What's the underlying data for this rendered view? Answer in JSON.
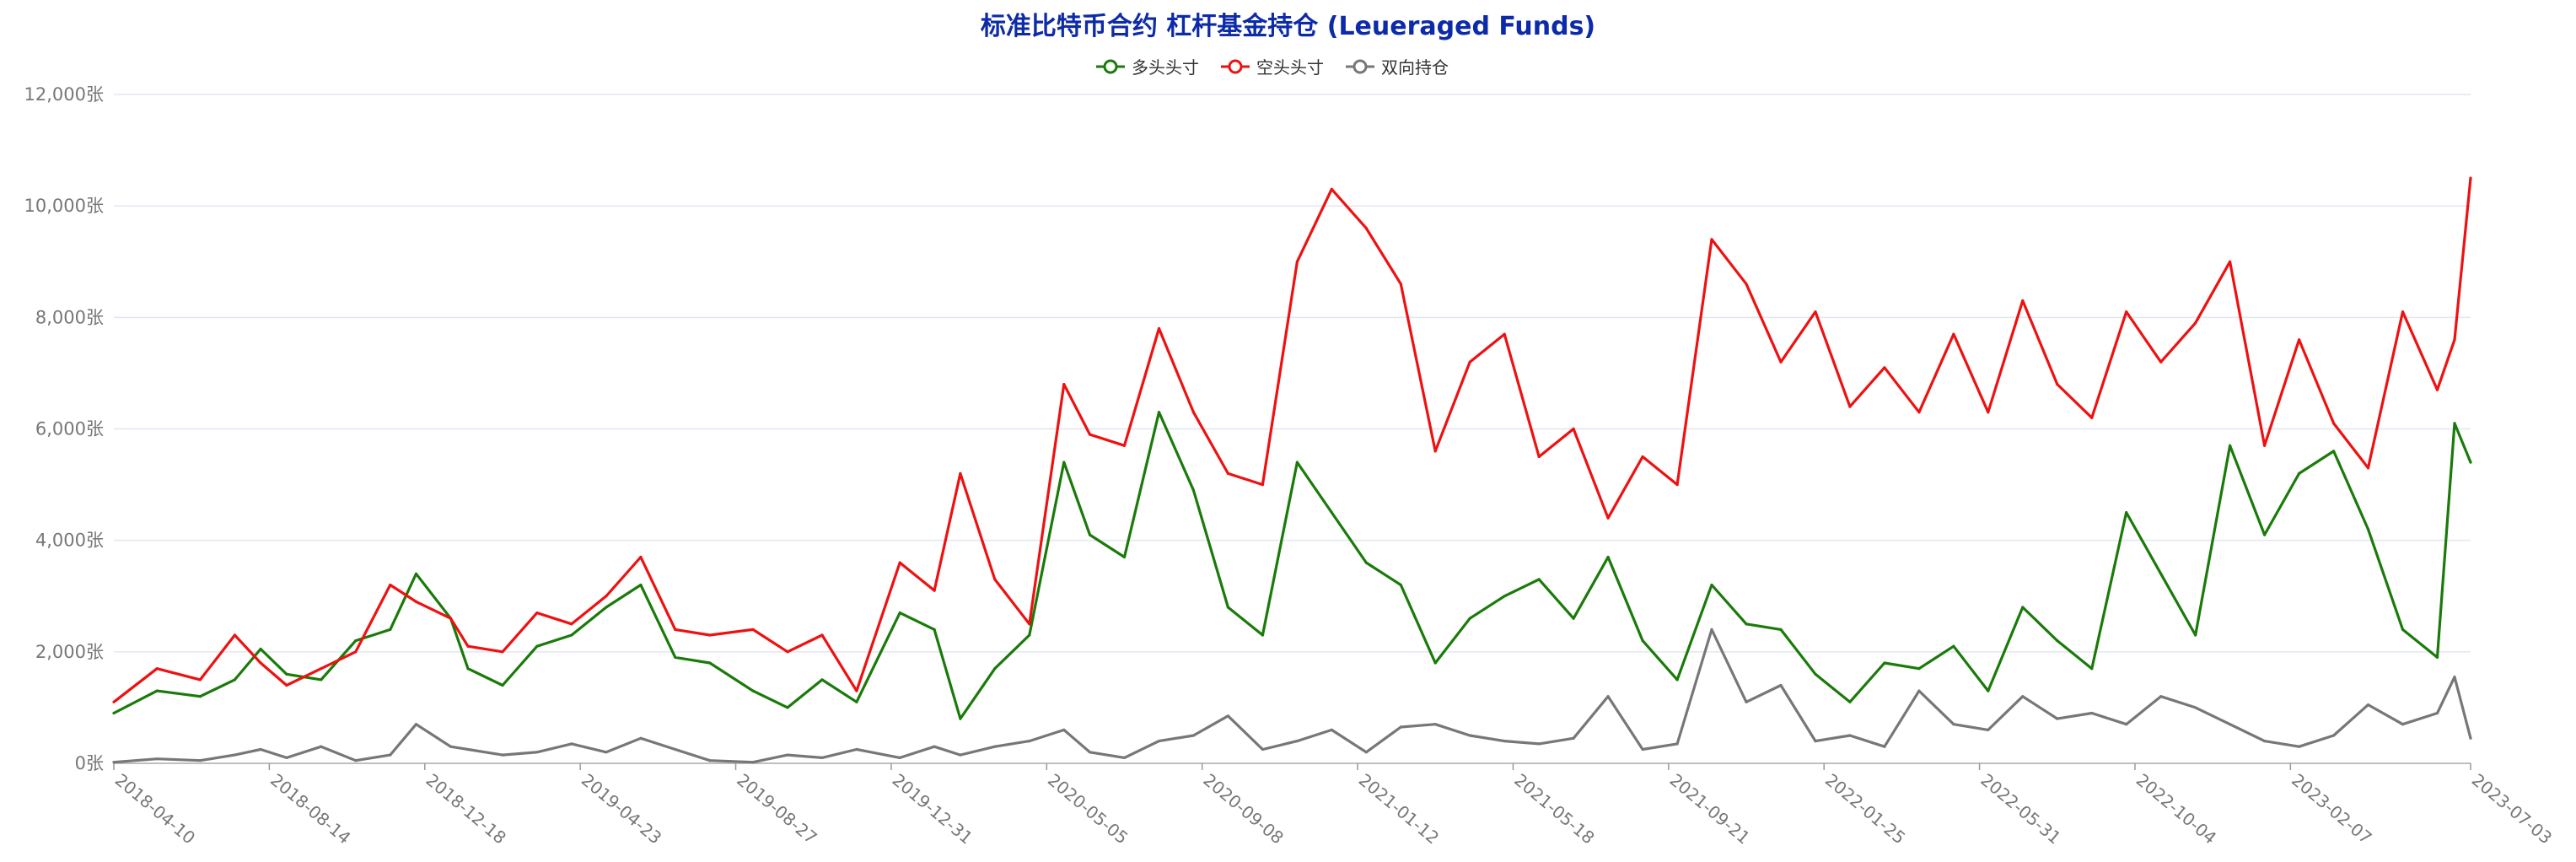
{
  "chart_data": {
    "type": "line",
    "title": "标准比特币合约 杠杆基金持仓 (Leueraged Funds)",
    "ylim": [
      0,
      12000
    ],
    "y_ticks": [
      "0张",
      "2,000张",
      "4,000张",
      "6,000张",
      "8,000张",
      "10,000张",
      "12,000张"
    ],
    "y_tick_values": [
      0,
      2000,
      4000,
      6000,
      8000,
      10000,
      12000
    ],
    "x_ticks": [
      "2018-04-10",
      "2018-08-14",
      "2018-12-18",
      "2019-04-23",
      "2019-08-27",
      "2019-12-31",
      "2020-05-05",
      "2020-09-08",
      "2021-01-12",
      "2021-05-18",
      "2021-09-21",
      "2022-01-25",
      "2022-05-31",
      "2022-10-04",
      "2023-02-07",
      "2023-07-03"
    ],
    "grid": true,
    "legend_position": "top-center",
    "series": [
      {
        "name": "多头头寸",
        "color": "#1a7a0a",
        "points": [
          [
            "2018-04-10",
            900
          ],
          [
            "2018-05-15",
            1300
          ],
          [
            "2018-06-19",
            1200
          ],
          [
            "2018-07-17",
            1500
          ],
          [
            "2018-08-07",
            2050
          ],
          [
            "2018-08-28",
            1600
          ],
          [
            "2018-09-25",
            1500
          ],
          [
            "2018-10-23",
            2200
          ],
          [
            "2018-11-20",
            2400
          ],
          [
            "2018-12-11",
            3400
          ],
          [
            "2019-01-08",
            2600
          ],
          [
            "2019-01-22",
            1700
          ],
          [
            "2019-02-19",
            1400
          ],
          [
            "2019-03-19",
            2100
          ],
          [
            "2019-04-16",
            2300
          ],
          [
            "2019-05-14",
            2800
          ],
          [
            "2019-06-11",
            3200
          ],
          [
            "2019-07-09",
            1900
          ],
          [
            "2019-08-06",
            1800
          ],
          [
            "2019-09-10",
            1300
          ],
          [
            "2019-10-08",
            1000
          ],
          [
            "2019-11-05",
            1500
          ],
          [
            "2019-12-03",
            1100
          ],
          [
            "2020-01-07",
            2700
          ],
          [
            "2020-02-04",
            2400
          ],
          [
            "2020-02-25",
            800
          ],
          [
            "2020-03-24",
            1700
          ],
          [
            "2020-04-21",
            2300
          ],
          [
            "2020-05-19",
            5400
          ],
          [
            "2020-06-09",
            4100
          ],
          [
            "2020-07-07",
            3700
          ],
          [
            "2020-08-04",
            6300
          ],
          [
            "2020-09-01",
            4900
          ],
          [
            "2020-09-29",
            2800
          ],
          [
            "2020-10-27",
            2300
          ],
          [
            "2020-11-24",
            5400
          ],
          [
            "2020-12-22",
            4500
          ],
          [
            "2021-01-19",
            3600
          ],
          [
            "2021-02-16",
            3200
          ],
          [
            "2021-03-16",
            1800
          ],
          [
            "2021-04-13",
            2600
          ],
          [
            "2021-05-11",
            3000
          ],
          [
            "2021-06-08",
            3300
          ],
          [
            "2021-07-06",
            2600
          ],
          [
            "2021-08-03",
            3700
          ],
          [
            "2021-08-31",
            2200
          ],
          [
            "2021-09-28",
            1500
          ],
          [
            "2021-10-26",
            3200
          ],
          [
            "2021-11-23",
            2500
          ],
          [
            "2021-12-21",
            2400
          ],
          [
            "2022-01-18",
            1600
          ],
          [
            "2022-02-15",
            1100
          ],
          [
            "2022-03-15",
            1800
          ],
          [
            "2022-04-12",
            1700
          ],
          [
            "2022-05-10",
            2100
          ],
          [
            "2022-06-07",
            1300
          ],
          [
            "2022-07-05",
            2800
          ],
          [
            "2022-08-02",
            2200
          ],
          [
            "2022-08-30",
            1700
          ],
          [
            "2022-09-27",
            4500
          ],
          [
            "2022-10-25",
            3400
          ],
          [
            "2022-11-22",
            2300
          ],
          [
            "2022-12-20",
            5700
          ],
          [
            "2023-01-17",
            4100
          ],
          [
            "2023-02-14",
            5200
          ],
          [
            "2023-03-14",
            5600
          ],
          [
            "2023-04-11",
            4200
          ],
          [
            "2023-05-09",
            2400
          ],
          [
            "2023-06-06",
            1900
          ],
          [
            "2023-06-20",
            6100
          ],
          [
            "2023-07-03",
            5400
          ]
        ]
      },
      {
        "name": "空头头寸",
        "color": "#ee1111",
        "points": [
          [
            "2018-04-10",
            1100
          ],
          [
            "2018-05-15",
            1700
          ],
          [
            "2018-06-19",
            1500
          ],
          [
            "2018-07-17",
            2300
          ],
          [
            "2018-08-07",
            1800
          ],
          [
            "2018-08-28",
            1400
          ],
          [
            "2018-09-25",
            1700
          ],
          [
            "2018-10-23",
            2000
          ],
          [
            "2018-11-20",
            3200
          ],
          [
            "2018-12-11",
            2900
          ],
          [
            "2019-01-08",
            2600
          ],
          [
            "2019-01-22",
            2100
          ],
          [
            "2019-02-19",
            2000
          ],
          [
            "2019-03-19",
            2700
          ],
          [
            "2019-04-16",
            2500
          ],
          [
            "2019-05-14",
            3000
          ],
          [
            "2019-06-11",
            3700
          ],
          [
            "2019-07-09",
            2400
          ],
          [
            "2019-08-06",
            2300
          ],
          [
            "2019-09-10",
            2400
          ],
          [
            "2019-10-08",
            2000
          ],
          [
            "2019-11-05",
            2300
          ],
          [
            "2019-12-03",
            1300
          ],
          [
            "2020-01-07",
            3600
          ],
          [
            "2020-02-04",
            3100
          ],
          [
            "2020-02-25",
            5200
          ],
          [
            "2020-03-24",
            3300
          ],
          [
            "2020-04-21",
            2500
          ],
          [
            "2020-05-19",
            6800
          ],
          [
            "2020-06-09",
            5900
          ],
          [
            "2020-07-07",
            5700
          ],
          [
            "2020-08-04",
            7800
          ],
          [
            "2020-09-01",
            6300
          ],
          [
            "2020-09-29",
            5200
          ],
          [
            "2020-10-27",
            5000
          ],
          [
            "2020-11-24",
            9000
          ],
          [
            "2020-12-22",
            10300
          ],
          [
            "2021-01-19",
            9600
          ],
          [
            "2021-02-16",
            8600
          ],
          [
            "2021-03-16",
            5600
          ],
          [
            "2021-04-13",
            7200
          ],
          [
            "2021-05-11",
            7700
          ],
          [
            "2021-06-08",
            5500
          ],
          [
            "2021-07-06",
            6000
          ],
          [
            "2021-08-03",
            4400
          ],
          [
            "2021-08-31",
            5500
          ],
          [
            "2021-09-28",
            5000
          ],
          [
            "2021-10-26",
            9400
          ],
          [
            "2021-11-23",
            8600
          ],
          [
            "2021-12-21",
            7200
          ],
          [
            "2022-01-18",
            8100
          ],
          [
            "2022-02-15",
            6400
          ],
          [
            "2022-03-15",
            7100
          ],
          [
            "2022-04-12",
            6300
          ],
          [
            "2022-05-10",
            7700
          ],
          [
            "2022-06-07",
            6300
          ],
          [
            "2022-07-05",
            8300
          ],
          [
            "2022-08-02",
            6800
          ],
          [
            "2022-08-30",
            6200
          ],
          [
            "2022-09-27",
            8100
          ],
          [
            "2022-10-25",
            7200
          ],
          [
            "2022-11-22",
            7900
          ],
          [
            "2022-12-20",
            9000
          ],
          [
            "2023-01-17",
            5700
          ],
          [
            "2023-02-14",
            7600
          ],
          [
            "2023-03-14",
            6100
          ],
          [
            "2023-04-11",
            5300
          ],
          [
            "2023-05-09",
            8100
          ],
          [
            "2023-06-06",
            6700
          ],
          [
            "2023-06-20",
            7600
          ],
          [
            "2023-07-03",
            10500
          ]
        ]
      },
      {
        "name": "双向持仓",
        "color": "#777777",
        "points": [
          [
            "2018-04-10",
            20
          ],
          [
            "2018-05-15",
            80
          ],
          [
            "2018-06-19",
            50
          ],
          [
            "2018-07-17",
            150
          ],
          [
            "2018-08-07",
            250
          ],
          [
            "2018-08-28",
            100
          ],
          [
            "2018-09-25",
            300
          ],
          [
            "2018-10-23",
            50
          ],
          [
            "2018-11-20",
            150
          ],
          [
            "2018-12-11",
            700
          ],
          [
            "2019-01-08",
            300
          ],
          [
            "2019-01-22",
            250
          ],
          [
            "2019-02-19",
            150
          ],
          [
            "2019-03-19",
            200
          ],
          [
            "2019-04-16",
            350
          ],
          [
            "2019-05-14",
            200
          ],
          [
            "2019-06-11",
            450
          ],
          [
            "2019-07-09",
            250
          ],
          [
            "2019-08-06",
            50
          ],
          [
            "2019-09-10",
            20
          ],
          [
            "2019-10-08",
            150
          ],
          [
            "2019-11-05",
            100
          ],
          [
            "2019-12-03",
            250
          ],
          [
            "2020-01-07",
            100
          ],
          [
            "2020-02-04",
            300
          ],
          [
            "2020-02-25",
            150
          ],
          [
            "2020-03-24",
            300
          ],
          [
            "2020-04-21",
            400
          ],
          [
            "2020-05-19",
            600
          ],
          [
            "2020-06-09",
            200
          ],
          [
            "2020-07-07",
            100
          ],
          [
            "2020-08-04",
            400
          ],
          [
            "2020-09-01",
            500
          ],
          [
            "2020-09-29",
            850
          ],
          [
            "2020-10-27",
            250
          ],
          [
            "2020-11-24",
            400
          ],
          [
            "2020-12-22",
            600
          ],
          [
            "2021-01-19",
            200
          ],
          [
            "2021-02-16",
            650
          ],
          [
            "2021-03-16",
            700
          ],
          [
            "2021-04-13",
            500
          ],
          [
            "2021-05-11",
            400
          ],
          [
            "2021-06-08",
            350
          ],
          [
            "2021-07-06",
            450
          ],
          [
            "2021-08-03",
            1200
          ],
          [
            "2021-08-31",
            250
          ],
          [
            "2021-09-28",
            350
          ],
          [
            "2021-10-26",
            2400
          ],
          [
            "2021-11-23",
            1100
          ],
          [
            "2021-12-21",
            1400
          ],
          [
            "2022-01-18",
            400
          ],
          [
            "2022-02-15",
            500
          ],
          [
            "2022-03-15",
            300
          ],
          [
            "2022-04-12",
            1300
          ],
          [
            "2022-05-10",
            700
          ],
          [
            "2022-06-07",
            600
          ],
          [
            "2022-07-05",
            1200
          ],
          [
            "2022-08-02",
            800
          ],
          [
            "2022-08-30",
            900
          ],
          [
            "2022-09-27",
            700
          ],
          [
            "2022-10-25",
            1200
          ],
          [
            "2022-11-22",
            1000
          ],
          [
            "2022-12-20",
            700
          ],
          [
            "2023-01-17",
            400
          ],
          [
            "2023-02-14",
            300
          ],
          [
            "2023-03-14",
            500
          ],
          [
            "2023-04-11",
            1050
          ],
          [
            "2023-05-09",
            700
          ],
          [
            "2023-06-06",
            900
          ],
          [
            "2023-06-20",
            1550
          ],
          [
            "2023-07-03",
            450
          ]
        ]
      }
    ]
  }
}
